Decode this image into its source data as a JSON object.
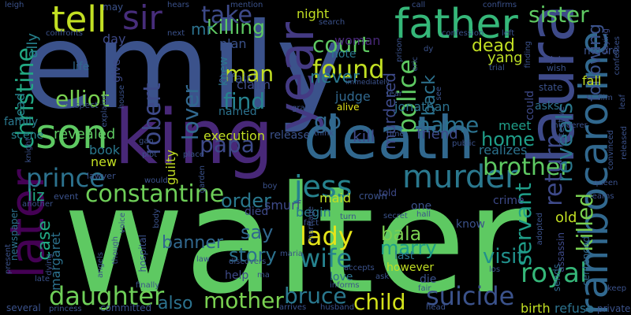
{
  "words": [
    {
      "text": "walter",
      "color": "#5ec962"
    },
    {
      "text": "emily",
      "color": "#3b528b"
    },
    {
      "text": "king",
      "color": "#482878"
    },
    {
      "text": "death",
      "color": "#31688e"
    },
    {
      "text": "laura",
      "color": "#3e4a89"
    },
    {
      "text": "father",
      "color": "#35b779"
    },
    {
      "text": "rambocaroline",
      "color": "#31688e"
    },
    {
      "text": "son",
      "color": "#5ec962"
    },
    {
      "text": "year",
      "color": "#443a83"
    },
    {
      "text": "tell",
      "color": "#c2df23"
    },
    {
      "text": "sir",
      "color": "#472d7b"
    },
    {
      "text": "murder",
      "color": "#2a788e"
    },
    {
      "text": "jess",
      "color": "#26828e"
    },
    {
      "text": "later",
      "color": "#440154"
    },
    {
      "text": "constantine",
      "color": "#6ece58"
    },
    {
      "text": "prince",
      "color": "#2c728e"
    },
    {
      "text": "royal",
      "color": "#35b779"
    },
    {
      "text": "suicide",
      "color": "#3b528b"
    },
    {
      "text": "daughter",
      "color": "#6ece58"
    },
    {
      "text": "wife",
      "color": "#26828e"
    },
    {
      "text": "lady",
      "color": "#e5e419"
    },
    {
      "text": "mother",
      "color": "#7ad151"
    },
    {
      "text": "bruce",
      "color": "#2a788e"
    },
    {
      "text": "child",
      "color": "#d2e21b"
    },
    {
      "text": "christine",
      "color": "#22a884"
    },
    {
      "text": "brother",
      "color": "#5ec962"
    },
    {
      "text": "elliot",
      "color": "#7ad151"
    },
    {
      "text": "found",
      "color": "#c2df23"
    },
    {
      "text": "name",
      "color": "#2c728e"
    },
    {
      "text": "police",
      "color": "#5ec962"
    },
    {
      "text": "robert",
      "color": "#3e4a89"
    },
    {
      "text": "killed",
      "color": "#7ad151"
    },
    {
      "text": "reveals",
      "color": "#2a788e"
    },
    {
      "text": "return",
      "color": "#3e4a89"
    },
    {
      "text": "following",
      "color": "#3b528b"
    },
    {
      "text": "visit",
      "color": "#21918c"
    },
    {
      "text": "servant",
      "color": "#1f9e89"
    },
    {
      "text": "take",
      "color": "#3e4a89"
    },
    {
      "text": "killing",
      "color": "#5ec962"
    },
    {
      "text": "court",
      "color": "#5ec962"
    },
    {
      "text": "sister",
      "color": "#5ec962"
    },
    {
      "text": "mr",
      "color": "#2c728e"
    },
    {
      "text": "man",
      "color": "#c2df23"
    },
    {
      "text": "find",
      "color": "#26828e"
    },
    {
      "text": "never",
      "color": "#2a788e"
    },
    {
      "text": "lover",
      "color": "#31688e"
    },
    {
      "text": "go",
      "color": "#31688e"
    },
    {
      "text": "papa",
      "color": "#3e4a89"
    },
    {
      "text": "home",
      "color": "#1f9e89"
    },
    {
      "text": "order",
      "color": "#2a788e"
    },
    {
      "text": "say",
      "color": "#31688e"
    },
    {
      "text": "story",
      "color": "#2c728e"
    },
    {
      "text": "bala",
      "color": "#7ad151"
    },
    {
      "text": "marry",
      "color": "#1f9e89"
    },
    {
      "text": "case",
      "color": "#22a884"
    },
    {
      "text": "margaret",
      "color": "#2c728e"
    },
    {
      "text": "liz",
      "color": "#22a884"
    },
    {
      "text": "banner",
      "color": "#31688e"
    },
    {
      "text": "also",
      "color": "#2c728e"
    },
    {
      "text": "back",
      "color": "#2c728e"
    },
    {
      "text": "murdered",
      "color": "#3e4a89"
    },
    {
      "text": "dead",
      "color": "#c2df23"
    },
    {
      "text": "yang",
      "color": "#bddf26"
    },
    {
      "text": "revealed",
      "color": "#5ec962"
    },
    {
      "text": "book",
      "color": "#2a788e"
    },
    {
      "text": "new",
      "color": "#c2df23"
    },
    {
      "text": "guilty",
      "color": "#c2df23"
    },
    {
      "text": "execution",
      "color": "#c2df23"
    },
    {
      "text": "release",
      "color": "#3b528b"
    },
    {
      "text": "kill",
      "color": "#3e4a89"
    },
    {
      "text": "friend",
      "color": "#3e4a89"
    },
    {
      "text": "realizes",
      "color": "#2c728e"
    },
    {
      "text": "meet",
      "color": "#1f9e89"
    },
    {
      "text": "judge",
      "color": "#31688e"
    },
    {
      "text": "alive",
      "color": "#e5e419"
    },
    {
      "text": "jonathan",
      "color": "#2c728e"
    },
    {
      "text": "note",
      "color": "#2a788e"
    },
    {
      "text": "woman",
      "color": "#482878"
    },
    {
      "text": "affair",
      "color": "#3b528b"
    },
    {
      "text": "claim",
      "color": "#3e4a89"
    },
    {
      "text": "knew",
      "color": "#2a788e"
    },
    {
      "text": "named",
      "color": "#2c728e"
    },
    {
      "text": "plan",
      "color": "#3b528b"
    },
    {
      "text": "night",
      "color": "#c2df23"
    },
    {
      "text": "day",
      "color": "#3e4a89"
    },
    {
      "text": "give",
      "color": "#3e4a89"
    },
    {
      "text": "life",
      "color": "#31688e"
    },
    {
      "text": "family",
      "color": "#2a788e"
    },
    {
      "text": "lead",
      "color": "#26828e"
    },
    {
      "text": "scene",
      "color": "#26828e"
    },
    {
      "text": "ally",
      "color": "#26828e"
    },
    {
      "text": "smurf",
      "color": "#3e4a89"
    },
    {
      "text": "died",
      "color": "#3e4a89"
    },
    {
      "text": "maid",
      "color": "#c2df23"
    },
    {
      "text": "begin",
      "color": "#2a788e"
    },
    {
      "text": "love",
      "color": "#2c728e"
    },
    {
      "text": "help",
      "color": "#3e4a89"
    },
    {
      "text": "however",
      "color": "#c2df23"
    },
    {
      "text": "last",
      "color": "#2c728e"
    },
    {
      "text": "die",
      "color": "#3b528b"
    },
    {
      "text": "crime",
      "color": "#3e4a89"
    },
    {
      "text": "old",
      "color": "#c2df23"
    },
    {
      "text": "know",
      "color": "#3b528b"
    },
    {
      "text": "one",
      "color": "#3b528b"
    },
    {
      "text": "told",
      "color": "#3e4a89"
    },
    {
      "text": "crown",
      "color": "#3b528b"
    },
    {
      "text": "birth",
      "color": "#c2df23"
    },
    {
      "text": "refuse",
      "color": "#2c728e"
    },
    {
      "text": "sentenced",
      "color": "#31688e"
    },
    {
      "text": "assassin",
      "color": "#3e4a89"
    },
    {
      "text": "sends",
      "color": "#31688e"
    },
    {
      "text": "fall",
      "color": "#c2df23"
    },
    {
      "text": "moore",
      "color": "#3b528b"
    },
    {
      "text": "could",
      "color": "#3e4a89"
    },
    {
      "text": "asks",
      "color": "#2c728e"
    },
    {
      "text": "state",
      "color": "#3b528b"
    },
    {
      "text": "john",
      "color": "#3e4a89"
    },
    {
      "text": "wish",
      "color": "#3b528b"
    },
    {
      "text": "detective",
      "color": "#3b528b"
    },
    {
      "text": "murderer",
      "color": "#3b528b"
    },
    {
      "text": "convinced",
      "color": "#3b528b"
    },
    {
      "text": "released",
      "color": "#3b528b"
    },
    {
      "text": "film",
      "color": "#3b528b"
    },
    {
      "text": "leaf",
      "color": "#3b528b"
    },
    {
      "text": "saying",
      "color": "#3e4a89"
    },
    {
      "text": "confesses",
      "color": "#3b528b"
    },
    {
      "text": "confirms",
      "color": "#3b528b"
    },
    {
      "text": "confession",
      "color": "#3b528b"
    },
    {
      "text": "finding",
      "color": "#3b528b"
    },
    {
      "text": "trial",
      "color": "#3b528b"
    },
    {
      "text": "left",
      "color": "#3b528b"
    },
    {
      "text": "call",
      "color": "#3b528b"
    },
    {
      "text": "search",
      "color": "#3b528b"
    },
    {
      "text": "mention",
      "color": "#3b528b"
    },
    {
      "text": "hears",
      "color": "#3b528b"
    },
    {
      "text": "next",
      "color": "#3b528b"
    },
    {
      "text": "may",
      "color": "#3b528b"
    },
    {
      "text": "leigh",
      "color": "#3b528b"
    },
    {
      "text": "confronts",
      "color": "#3b528b"
    },
    {
      "text": "suspect",
      "color": "#3b528b"
    },
    {
      "text": "explains",
      "color": "#3b528b"
    },
    {
      "text": "house",
      "color": "#3b528b"
    },
    {
      "text": "knight",
      "color": "#3b528b"
    },
    {
      "text": "lawyer",
      "color": "#3b528b"
    },
    {
      "text": "event",
      "color": "#3b528b"
    },
    {
      "text": "another",
      "color": "#3b528b"
    },
    {
      "text": "newspaper",
      "color": "#2c728e"
    },
    {
      "text": "present",
      "color": "#3b528b"
    },
    {
      "text": "several",
      "color": "#3b528b"
    },
    {
      "text": "late",
      "color": "#3b528b"
    },
    {
      "text": "dying",
      "color": "#3b528b"
    },
    {
      "text": "princess",
      "color": "#3b528b"
    },
    {
      "text": "angels",
      "color": "#3b528b"
    },
    {
      "text": "committed",
      "color": "#3b528b"
    },
    {
      "text": "finally",
      "color": "#3b528b"
    },
    {
      "text": "hospital",
      "color": "#3b528b"
    },
    {
      "text": "arrives",
      "color": "#3b528b"
    },
    {
      "text": "husband",
      "color": "#3b528b"
    },
    {
      "text": "head",
      "color": "#3b528b"
    },
    {
      "text": "private",
      "color": "#3b528b"
    },
    {
      "text": "keep",
      "color": "#3b528b"
    },
    {
      "text": "queen",
      "color": "#3b528b"
    },
    {
      "text": "learns",
      "color": "#3b528b"
    },
    {
      "text": "hall",
      "color": "#3b528b"
    },
    {
      "text": "secret",
      "color": "#3b528b"
    },
    {
      "text": "turn",
      "color": "#3b528b"
    },
    {
      "text": "fact",
      "color": "#3b528b"
    },
    {
      "text": "marriage",
      "color": "#3b528b"
    },
    {
      "text": "boy",
      "color": "#3b528b"
    },
    {
      "text": "fair",
      "color": "#3b528b"
    },
    {
      "text": "los",
      "color": "#3b528b"
    },
    {
      "text": "accepts",
      "color": "#3b528b"
    },
    {
      "text": "informs",
      "color": "#3b528b"
    },
    {
      "text": "maria",
      "color": "#3b528b"
    },
    {
      "text": "discovers",
      "color": "#3b528b"
    },
    {
      "text": "voice",
      "color": "#3b528b"
    },
    {
      "text": "though",
      "color": "#3b528b"
    },
    {
      "text": "would",
      "color": "#3b528b"
    },
    {
      "text": "garden",
      "color": "#3b528b"
    },
    {
      "text": "law",
      "color": "#3b528b"
    },
    {
      "text": "plot",
      "color": "#3b528b"
    },
    {
      "text": "place",
      "color": "#3b528b"
    },
    {
      "text": "public",
      "color": "#3b528b"
    },
    {
      "text": "time",
      "color": "#3b528b"
    },
    {
      "text": "think",
      "color": "#3b528b"
    },
    {
      "text": "grave",
      "color": "#3b528b"
    },
    {
      "text": "see",
      "color": "#3b528b"
    },
    {
      "text": "fear",
      "color": "#3b528b"
    },
    {
      "text": "adopted",
      "color": "#3b528b"
    },
    {
      "text": "prison",
      "color": "#3b528b"
    },
    {
      "text": "dy",
      "color": "#3b528b"
    },
    {
      "text": "eric",
      "color": "#3b528b"
    },
    {
      "text": "immediately",
      "color": "#3b528b"
    },
    {
      "text": "ask",
      "color": "#3b528b"
    },
    {
      "text": "ma",
      "color": "#3b528b"
    },
    {
      "text": "gan",
      "color": "#3b528b"
    },
    {
      "text": "body",
      "color": "#3b528b"
    }
  ]
}
